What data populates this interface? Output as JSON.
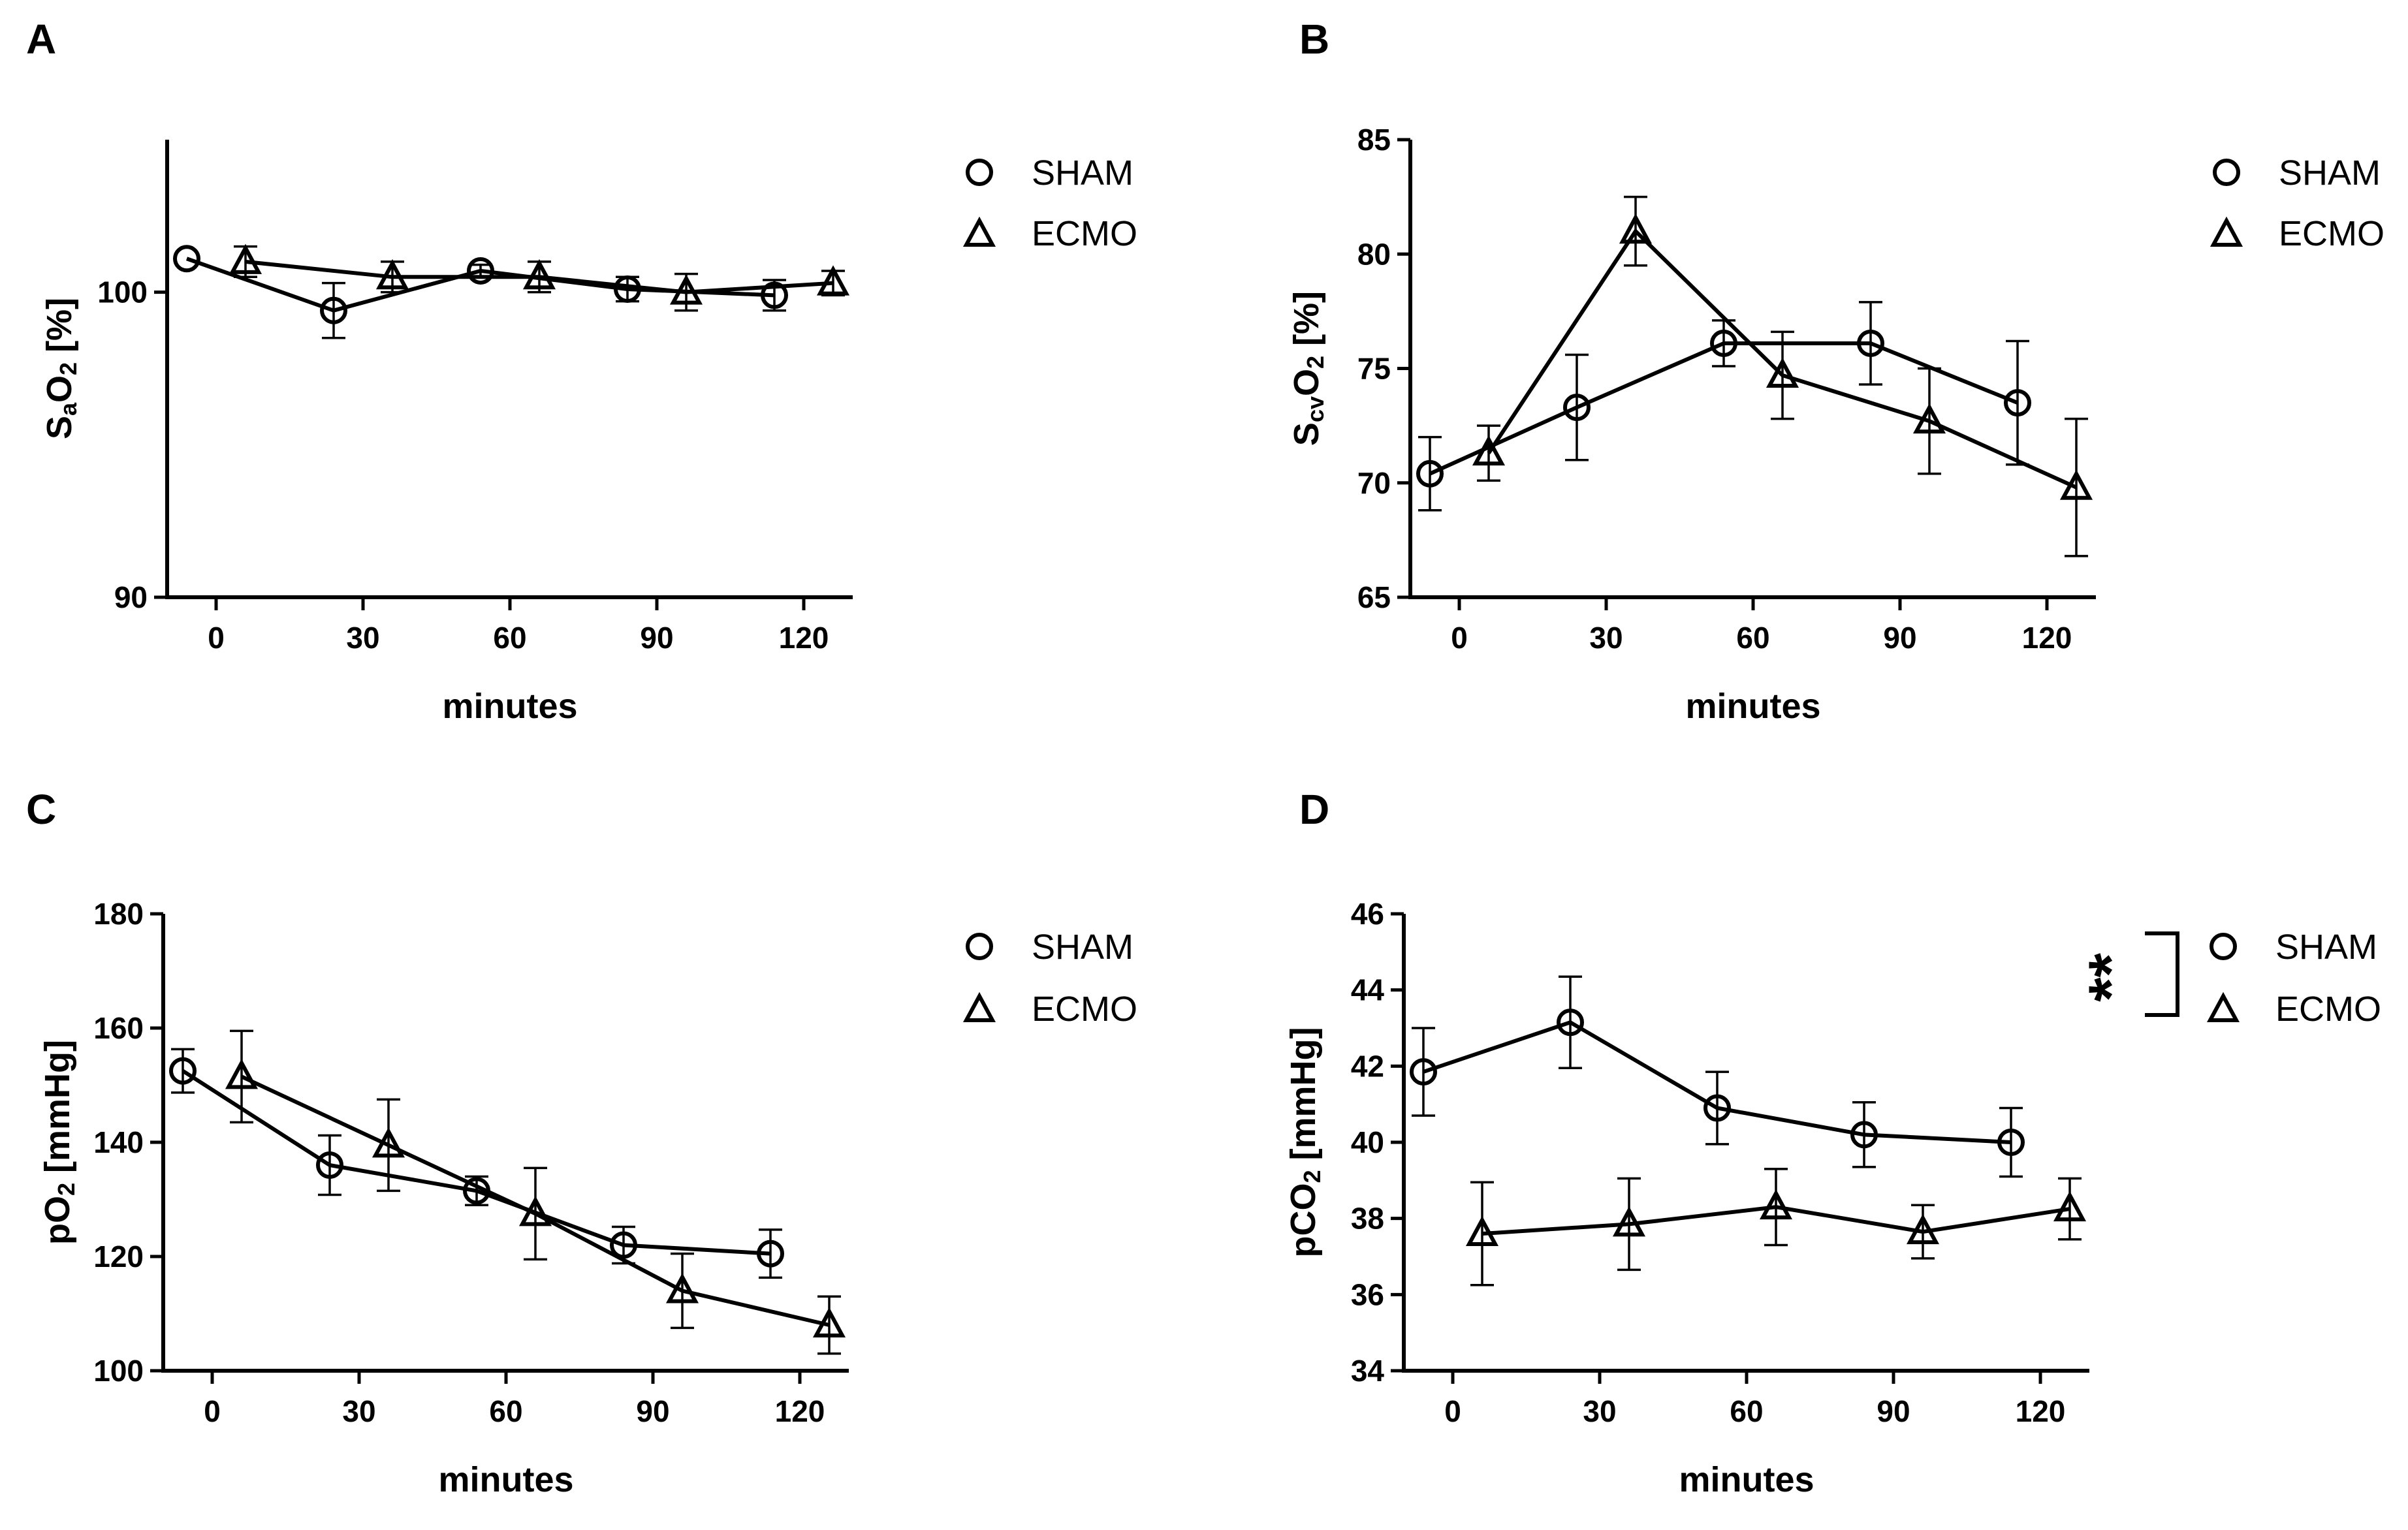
{
  "chart_data": [
    {
      "panel": "A",
      "type": "line",
      "ylabel": "SaO2 [%]",
      "ylabel_parts": [
        "S",
        "a",
        "O",
        "2",
        " [%]"
      ],
      "xlabel": "minutes",
      "ylim": [
        90,
        105
      ],
      "xlim": [
        -10,
        130
      ],
      "yticks": [
        90,
        100
      ],
      "xticks": [
        0,
        30,
        60,
        90,
        120
      ],
      "legend": [
        {
          "name": "SHAM",
          "marker": "circle"
        },
        {
          "name": "ECMO",
          "marker": "triangle"
        }
      ],
      "series": [
        {
          "name": "SHAM",
          "marker": "circle",
          "x": [
            -6,
            24,
            54,
            84,
            114
          ],
          "y": [
            101.1,
            99.4,
            100.7,
            100.1,
            99.9
          ],
          "err": [
            0,
            0.9,
            0.2,
            0.4,
            0.5
          ]
        },
        {
          "name": "ECMO",
          "marker": "triangle",
          "x": [
            6,
            36,
            66,
            96,
            126
          ],
          "y": [
            101.0,
            100.5,
            100.5,
            100.0,
            100.3
          ],
          "err": [
            0.5,
            0.5,
            0.5,
            0.6,
            0.4
          ]
        }
      ]
    },
    {
      "panel": "B",
      "type": "line",
      "ylabel": "ScvO2 [%]",
      "ylabel_parts": [
        "S",
        "cv",
        "O",
        "2",
        " [%]"
      ],
      "xlabel": "minutes",
      "ylim": [
        65,
        85
      ],
      "xlim": [
        -10,
        130
      ],
      "yticks": [
        65,
        70,
        75,
        80,
        85
      ],
      "xticks": [
        0,
        30,
        60,
        90,
        120
      ],
      "legend": [
        {
          "name": "SHAM",
          "marker": "circle"
        },
        {
          "name": "ECMO",
          "marker": "triangle"
        }
      ],
      "series": [
        {
          "name": "SHAM",
          "marker": "circle",
          "x": [
            -6,
            24,
            54,
            84,
            114
          ],
          "y": [
            70.4,
            73.3,
            76.1,
            76.1,
            73.5
          ],
          "err": [
            1.6,
            2.3,
            1.0,
            1.8,
            2.7
          ]
        },
        {
          "name": "ECMO",
          "marker": "triangle",
          "x": [
            6,
            36,
            66,
            96,
            126
          ],
          "y": [
            71.3,
            81.0,
            74.7,
            72.7,
            69.8
          ],
          "err": [
            1.2,
            1.5,
            1.9,
            2.3,
            3.0
          ]
        }
      ]
    },
    {
      "panel": "C",
      "type": "line",
      "ylabel": "pO2 [mmHg]",
      "ylabel_parts": [
        "pO",
        "2",
        " [mmHg]"
      ],
      "xlabel": "minutes",
      "ylim": [
        100,
        180
      ],
      "xlim": [
        -10,
        130
      ],
      "yticks": [
        100,
        120,
        140,
        160,
        180
      ],
      "xticks": [
        0,
        30,
        60,
        90,
        120
      ],
      "legend": [
        {
          "name": "SHAM",
          "marker": "circle"
        },
        {
          "name": "ECMO",
          "marker": "triangle"
        }
      ],
      "series": [
        {
          "name": "SHAM",
          "marker": "circle",
          "x": [
            -6,
            24,
            54,
            84,
            114
          ],
          "y": [
            152.5,
            136.0,
            131.5,
            122.0,
            120.5
          ],
          "err": [
            3.8,
            5.2,
            2.5,
            3.2,
            4.2
          ]
        },
        {
          "name": "ECMO",
          "marker": "triangle",
          "x": [
            6,
            36,
            66,
            96,
            126
          ],
          "y": [
            151.5,
            139.5,
            127.5,
            114.0,
            108.0
          ],
          "err": [
            8.0,
            8.0,
            8.0,
            6.5,
            5.0
          ]
        }
      ]
    },
    {
      "panel": "D",
      "type": "line",
      "ylabel": "pCO2 [mmHg]",
      "ylabel_parts": [
        "pCO",
        "2",
        " [mmHg]"
      ],
      "xlabel": "minutes",
      "ylim": [
        34,
        46
      ],
      "xlim": [
        -10,
        130
      ],
      "yticks": [
        34,
        36,
        38,
        40,
        42,
        44,
        46
      ],
      "xticks": [
        0,
        30,
        60,
        90,
        120
      ],
      "legend": [
        {
          "name": "SHAM",
          "marker": "circle"
        },
        {
          "name": "ECMO",
          "marker": "triangle"
        }
      ],
      "annotation": "**",
      "series": [
        {
          "name": "SHAM",
          "marker": "circle",
          "x": [
            -6,
            24,
            54,
            84,
            114
          ],
          "y": [
            41.85,
            43.15,
            40.9,
            40.2,
            40.0
          ],
          "err": [
            1.15,
            1.2,
            0.95,
            0.85,
            0.9
          ]
        },
        {
          "name": "ECMO",
          "marker": "triangle",
          "x": [
            6,
            36,
            66,
            96,
            126
          ],
          "y": [
            37.6,
            37.85,
            38.3,
            37.65,
            38.25
          ],
          "err": [
            1.35,
            1.2,
            1.0,
            0.7,
            0.8
          ]
        }
      ]
    }
  ]
}
